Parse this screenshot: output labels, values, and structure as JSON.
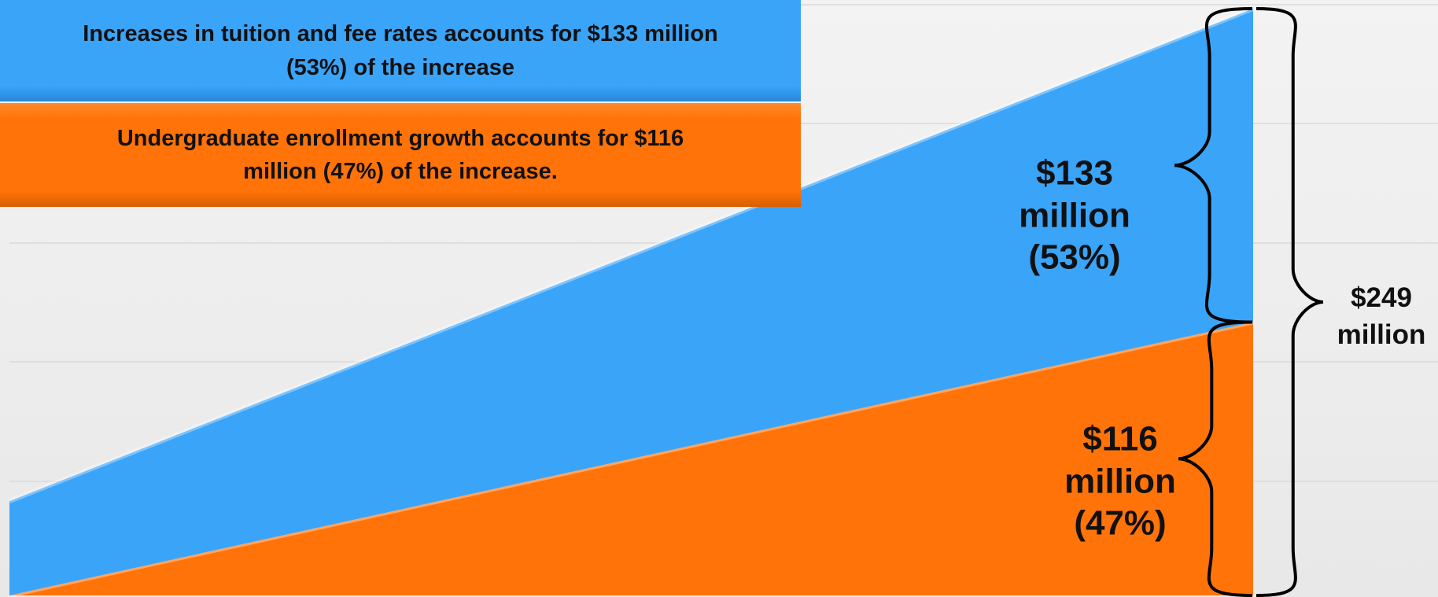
{
  "chart_data": {
    "type": "area",
    "stacked": true,
    "categories": [
      null,
      null
    ],
    "ylim": [
      0,
      250
    ],
    "series": [
      {
        "name": "Undergraduate enrollment growth accounts for $116 million (47%) of the increase.",
        "color": "#ff7309",
        "values": [
          0,
          116
        ],
        "value_labels": [
          null,
          "$116 million (47%)"
        ]
      },
      {
        "name": "Increases in tuition and fee rates accounts for $133 million (53%) of the increase",
        "color": "#3aa4f9",
        "values": [
          40,
          133
        ],
        "value_labels": [
          null,
          "$133 million (53%)"
        ]
      }
    ],
    "annotations": [
      "$249 million"
    ]
  }
}
